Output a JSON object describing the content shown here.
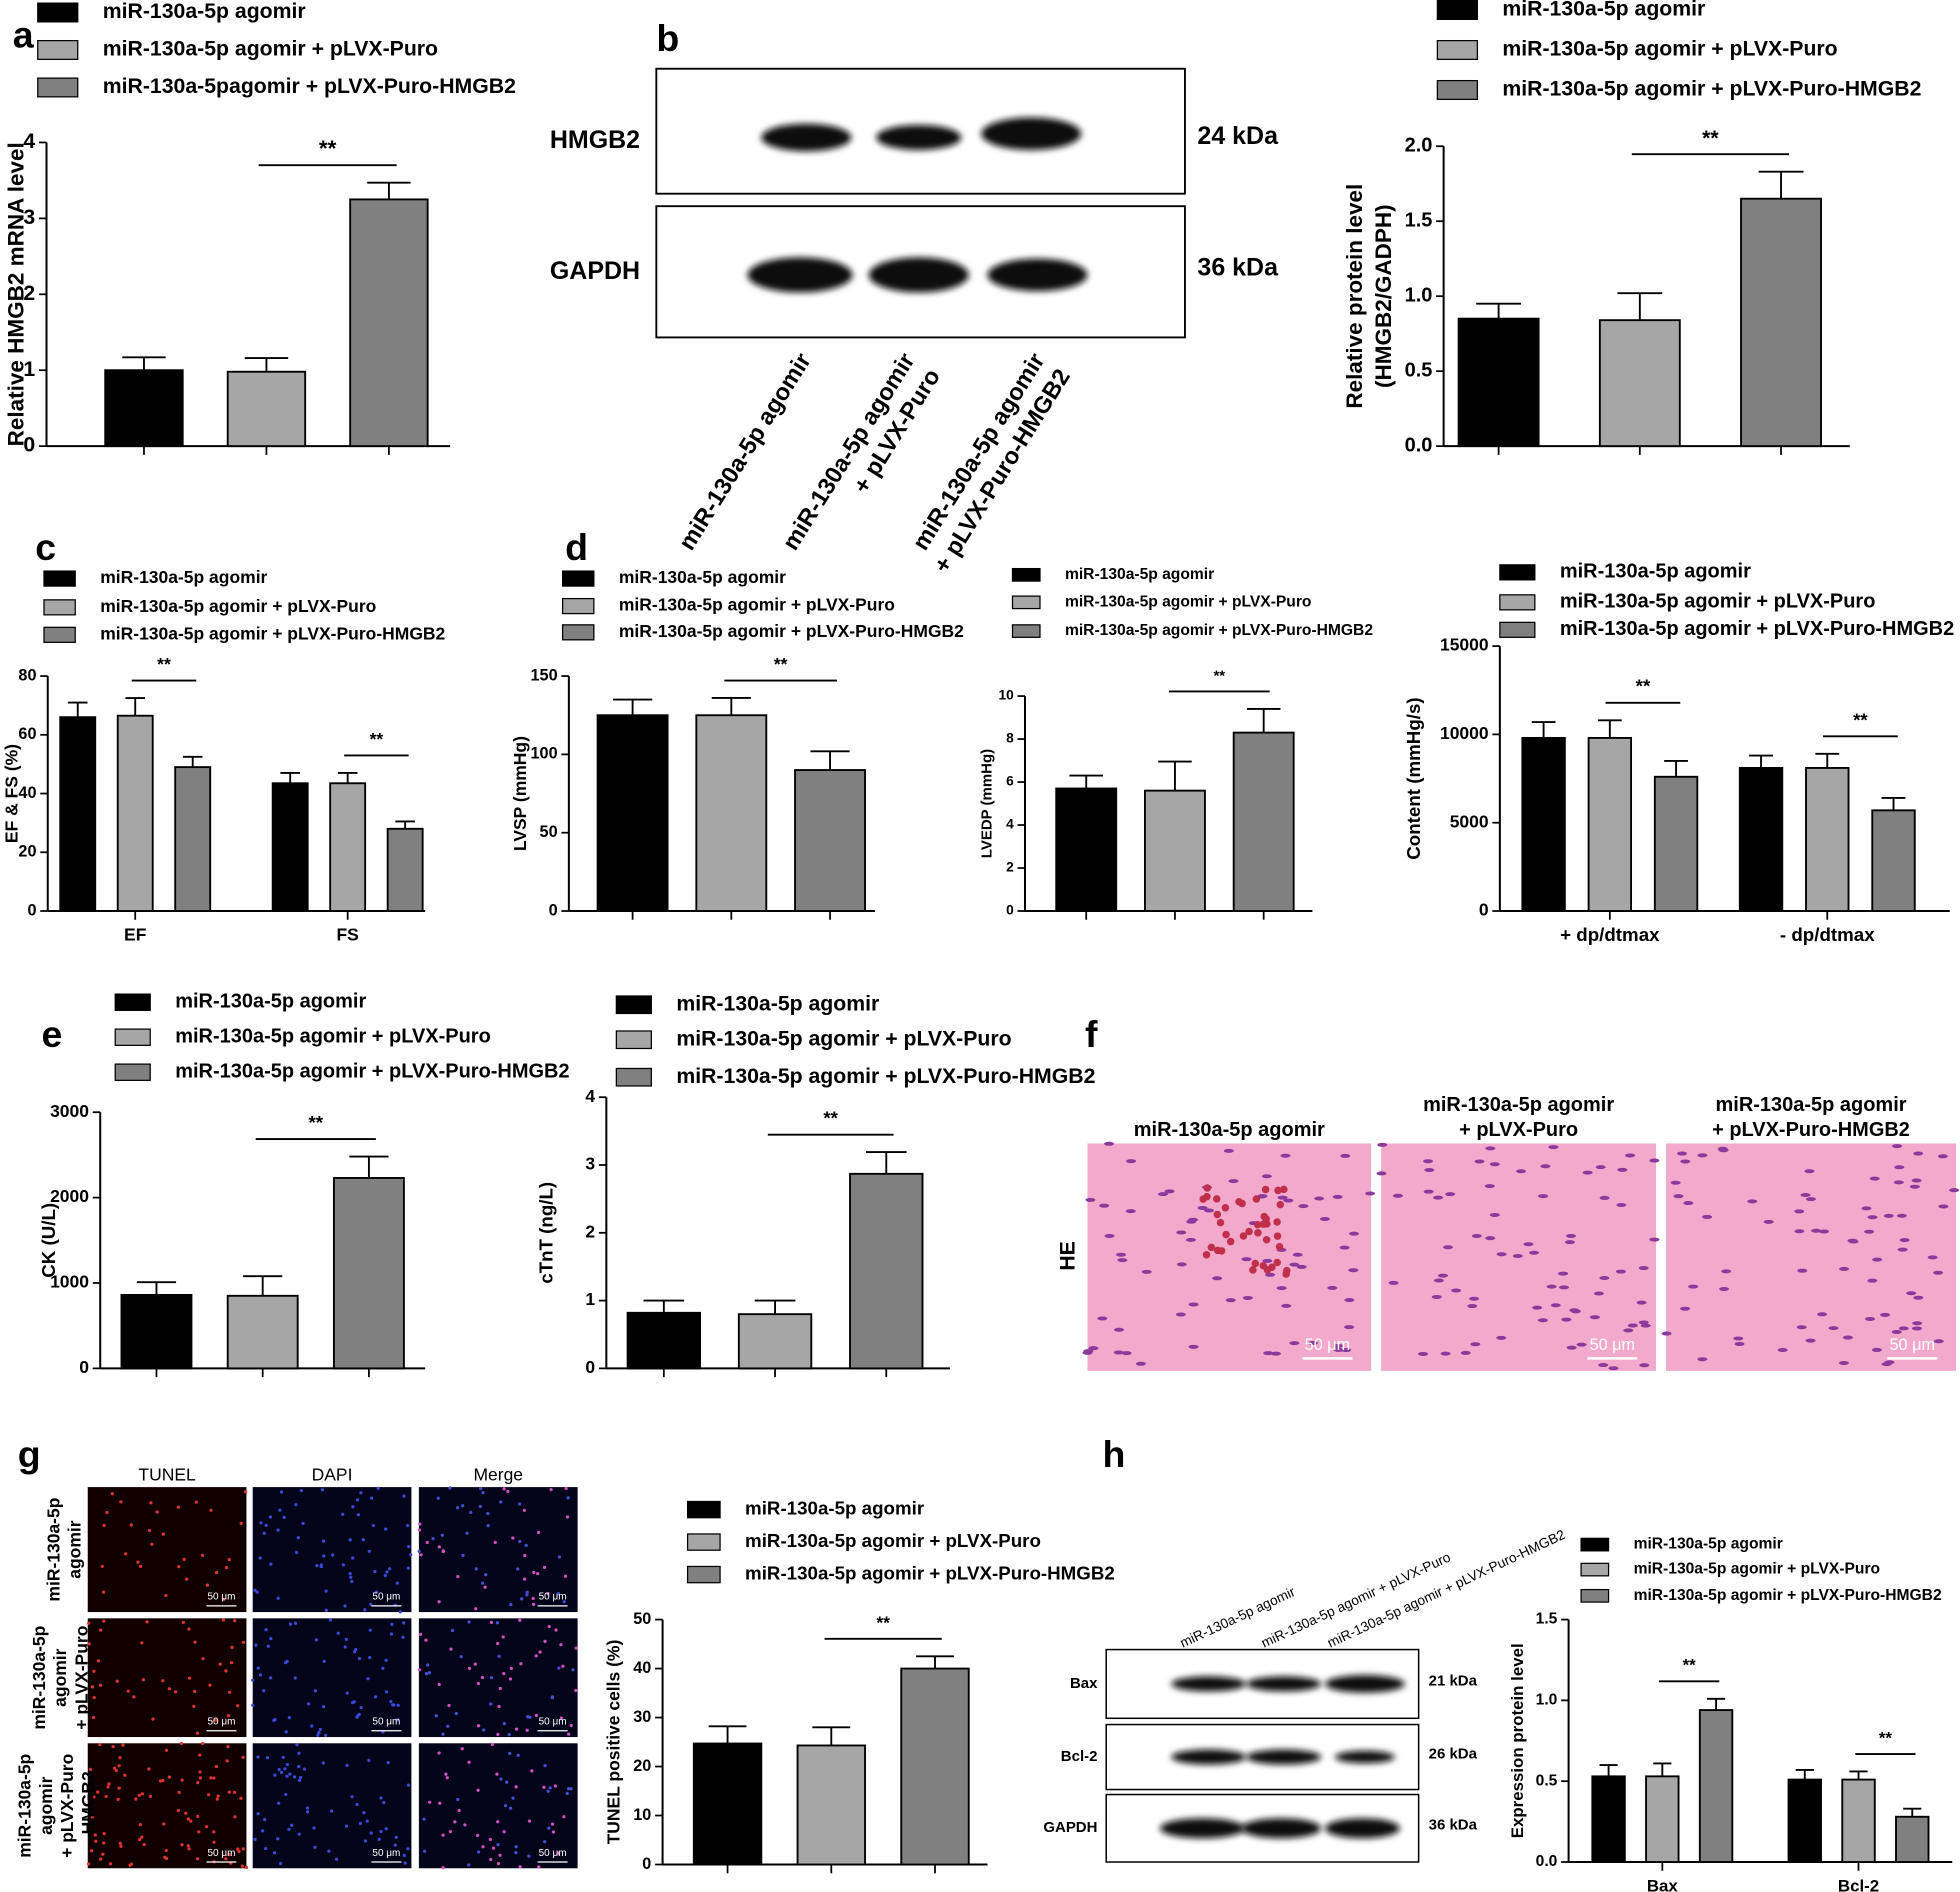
{
  "panel_letters": [
    "a",
    "b",
    "c",
    "d",
    "e",
    "f",
    "g",
    "h"
  ],
  "chart_data": [
    {
      "type": "bar",
      "ylabel": "Relative HMGB2 mRNA level",
      "categories": [
        null
      ],
      "ylim": [
        0,
        4
      ],
      "yticks": [
        0,
        1,
        2,
        3,
        4
      ],
      "series": [
        {
          "name": "miR-130a-5p agomir",
          "color": "#000000",
          "values": [
            1.0
          ],
          "errors": [
            0.17
          ]
        },
        {
          "name": "miR-130a-5p agomir + pLVX-Puro",
          "color": "#a6a6a6",
          "values": [
            0.98
          ],
          "errors": [
            0.18
          ]
        },
        {
          "name": "miR-130a-5pagomir + pLVX-Puro-HMGB2",
          "color": "#808080",
          "values": [
            3.25
          ],
          "errors": [
            0.22
          ]
        }
      ],
      "annotations": [
        "**"
      ]
    },
    {
      "type": "bar",
      "ylabel": [
        "Relative protein level",
        "(HMGB2/GADPH)"
      ],
      "categories": [
        null
      ],
      "ylim": [
        0,
        2
      ],
      "yticks": [
        {
          "value": 0,
          "label": "0.0"
        },
        0.5,
        {
          "value": 1,
          "label": "1.0"
        },
        1.5,
        {
          "value": 2,
          "label": "2.0"
        }
      ],
      "series": [
        {
          "name": "miR-130a-5p agomir",
          "color": "#000000",
          "values": [
            0.85
          ],
          "errors": [
            0.1
          ]
        },
        {
          "name": "miR-130a-5p agomir + pLVX-Puro",
          "color": "#a6a6a6",
          "values": [
            0.84
          ],
          "errors": [
            0.18
          ]
        },
        {
          "name": "miR-130a-5p agomir + pLVX-Puro-HMGB2",
          "color": "#808080",
          "values": [
            1.65
          ],
          "errors": [
            0.18
          ]
        }
      ],
      "annotations": [
        "**"
      ]
    },
    {
      "type": "bar",
      "ylabel": "EF & FS (%)",
      "categories": [
        "EF",
        "FS"
      ],
      "ylim": [
        0,
        80
      ],
      "yticks": [
        0,
        20,
        40,
        60,
        80
      ],
      "series": [
        {
          "name": "miR-130a-5p agomir",
          "color": "#000000",
          "values": [
            66,
            43.5
          ],
          "errors": [
            5,
            3.5
          ]
        },
        {
          "name": "miR-130a-5p agomir + pLVX-Puro",
          "color": "#a6a6a6",
          "values": [
            66.5,
            43.5
          ],
          "errors": [
            6,
            3.5
          ]
        },
        {
          "name": "miR-130a-5p agomir + pLVX-Puro-HMGB2",
          "color": "#808080",
          "values": [
            49,
            28
          ],
          "errors": [
            3.5,
            2.5
          ]
        }
      ],
      "annotations": [
        "**",
        "**"
      ]
    },
    {
      "type": "bar",
      "ylabel": "LVSP (mmHg)",
      "categories": [
        null
      ],
      "ylim": [
        0,
        150
      ],
      "yticks": [
        0,
        50,
        100,
        150
      ],
      "series": [
        {
          "name": "miR-130a-5p agomir",
          "color": "#000000",
          "values": [
            125
          ],
          "errors": [
            10
          ]
        },
        {
          "name": "miR-130a-5p agomir + pLVX-Puro",
          "color": "#a6a6a6",
          "values": [
            125
          ],
          "errors": [
            11
          ]
        },
        {
          "name": "miR-130a-5p agomir + pLVX-Puro-HMGB2",
          "color": "#808080",
          "values": [
            90
          ],
          "errors": [
            12
          ]
        }
      ],
      "annotations": [
        "**"
      ]
    },
    {
      "type": "bar",
      "ylabel": "LVEDP (mmHg)",
      "categories": [
        null
      ],
      "ylim": [
        0,
        10
      ],
      "yticks": [
        0,
        2,
        4,
        6,
        8,
        10
      ],
      "series": [
        {
          "name": "miR-130a-5p agomir",
          "color": "#000000",
          "values": [
            5.7
          ],
          "errors": [
            0.6
          ]
        },
        {
          "name": "miR-130a-5p agomir + pLVX-Puro",
          "color": "#a6a6a6",
          "values": [
            5.6
          ],
          "errors": [
            1.35
          ]
        },
        {
          "name": "miR-130a-5p agomir + pLVX-Puro-HMGB2",
          "color": "#808080",
          "values": [
            8.3
          ],
          "errors": [
            1.1
          ]
        }
      ],
      "annotations": [
        "**"
      ]
    },
    {
      "type": "bar",
      "ylabel": "Content (mmHg/s)",
      "categories": [
        "+ dp/dtmax",
        "- dp/dtmax"
      ],
      "ylim": [
        0,
        15000
      ],
      "yticks": [
        0,
        5000,
        10000,
        15000
      ],
      "series": [
        {
          "name": "miR-130a-5p agomir",
          "color": "#000000",
          "values": [
            9800,
            8100
          ],
          "errors": [
            900,
            700
          ]
        },
        {
          "name": "miR-130a-5p agomir + pLVX-Puro",
          "color": "#a6a6a6",
          "values": [
            9800,
            8100
          ],
          "errors": [
            1000,
            800
          ]
        },
        {
          "name": "miR-130a-5p agomir + pLVX-Puro-HMGB2",
          "color": "#808080",
          "values": [
            7600,
            5700
          ],
          "errors": [
            900,
            700
          ]
        }
      ],
      "annotations": [
        "**",
        "**"
      ]
    },
    {
      "type": "bar",
      "ylabel": "CK (U/L)",
      "categories": [
        null
      ],
      "ylim": [
        0,
        3000
      ],
      "yticks": [
        0,
        1000,
        2000,
        3000
      ],
      "series": [
        {
          "name": "miR-130a-5p agomir",
          "color": "#000000",
          "values": [
            860
          ],
          "errors": [
            150
          ]
        },
        {
          "name": "miR-130a-5p agomir + pLVX-Puro",
          "color": "#a6a6a6",
          "values": [
            850
          ],
          "errors": [
            230
          ]
        },
        {
          "name": "miR-130a-5p agomir + pLVX-Puro-HMGB2",
          "color": "#808080",
          "values": [
            2230
          ],
          "errors": [
            250
          ]
        }
      ],
      "annotations": [
        "**"
      ]
    },
    {
      "type": "bar",
      "ylabel": "cTnT (ng/L)",
      "categories": [
        null
      ],
      "ylim": [
        0,
        4
      ],
      "yticks": [
        0,
        1,
        2,
        3,
        4
      ],
      "series": [
        {
          "name": "miR-130a-5p agomir",
          "color": "#000000",
          "values": [
            0.82
          ],
          "errors": [
            0.18
          ]
        },
        {
          "name": "miR-130a-5p agomir + pLVX-Puro",
          "color": "#a6a6a6",
          "values": [
            0.8
          ],
          "errors": [
            0.2
          ]
        },
        {
          "name": "miR-130a-5p agomir + pLVX-Puro-HMGB2",
          "color": "#808080",
          "values": [
            2.87
          ],
          "errors": [
            0.32
          ]
        }
      ],
      "annotations": [
        "**"
      ]
    },
    {
      "type": "bar",
      "ylabel": "TUNEL positive cells (%)",
      "categories": [
        null
      ],
      "ylim": [
        0,
        50
      ],
      "yticks": [
        0,
        10,
        20,
        30,
        40,
        50
      ],
      "series": [
        {
          "name": "miR-130a-5p agomir",
          "color": "#000000",
          "values": [
            24.7
          ],
          "errors": [
            3.5
          ]
        },
        {
          "name": "miR-130a-5p agomir + pLVX-Puro",
          "color": "#a6a6a6",
          "values": [
            24.3
          ],
          "errors": [
            3.7
          ]
        },
        {
          "name": "miR-130a-5p agomir + pLVX-Puro-HMGB2",
          "color": "#808080",
          "values": [
            40
          ],
          "errors": [
            2.5
          ]
        }
      ],
      "annotations": [
        "**"
      ]
    },
    {
      "type": "bar",
      "ylabel": "Expression protein level",
      "categories": [
        "Bax",
        "Bcl-2"
      ],
      "ylim": [
        0,
        1.5
      ],
      "yticks": [
        {
          "value": 0,
          "label": "0.0"
        },
        0.5,
        {
          "value": 1,
          "label": "1.0"
        },
        1.5
      ],
      "series": [
        {
          "name": "miR-130a-5p agomir",
          "color": "#000000",
          "values": [
            0.53,
            0.51
          ],
          "errors": [
            0.07,
            0.06
          ]
        },
        {
          "name": "miR-130a-5p agomir + pLVX-Puro",
          "color": "#a6a6a6",
          "values": [
            0.53,
            0.51
          ],
          "errors": [
            0.08,
            0.05
          ]
        },
        {
          "name": "miR-130a-5p agomir + pLVX-Puro-HMGB2",
          "color": "#808080",
          "values": [
            0.94,
            0.28
          ],
          "errors": [
            0.07,
            0.05
          ]
        }
      ],
      "annotations": [
        "**",
        "**"
      ]
    }
  ],
  "blot_b": {
    "proteins": [
      "HMGB2",
      "GAPDH"
    ],
    "sizes": [
      "24 kDa",
      "36 kDa"
    ],
    "lanes": [
      [
        "miR-130a-5p agomir"
      ],
      [
        "miR-130a-5p agomir",
        "+ pLVX-Puro"
      ],
      [
        "miR-130a-5p agomir",
        "+ pLVX-Puro-HMGB2"
      ]
    ]
  },
  "he_f": {
    "stain": "HE",
    "columns": [
      [
        "miR-130a-5p agomir"
      ],
      [
        "miR-130a-5p agomir",
        "+ pLVX-Puro"
      ],
      [
        "miR-130a-5p agomir",
        "+ pLVX-Puro-HMGB2"
      ]
    ],
    "scale_bar": "50 μm"
  },
  "tunel_g": {
    "columns": [
      "TUNEL",
      "DAPI",
      "Merge"
    ],
    "rows": [
      [
        "miR-130a-5p",
        "agomir"
      ],
      [
        "miR-130a-5p",
        "agomir",
        "+ pLVX-Puro"
      ],
      [
        "miR-130a-5p",
        "agomir",
        "+ pLVX-Puro",
        "-HMGB2"
      ]
    ],
    "scale_bar": "50 μm"
  },
  "blot_h": {
    "lanes": [
      "miR-130a-5p agomir",
      "miR-130a-5p agomir + pLVX-Puro",
      "miR-130a-5p agomir + pLVX-Puro-HMGB2"
    ],
    "proteins": [
      "Bax",
      "Bcl-2",
      "GAPDH"
    ],
    "sizes": [
      "21 kDa",
      "26 kDa",
      "36 kDa"
    ]
  }
}
